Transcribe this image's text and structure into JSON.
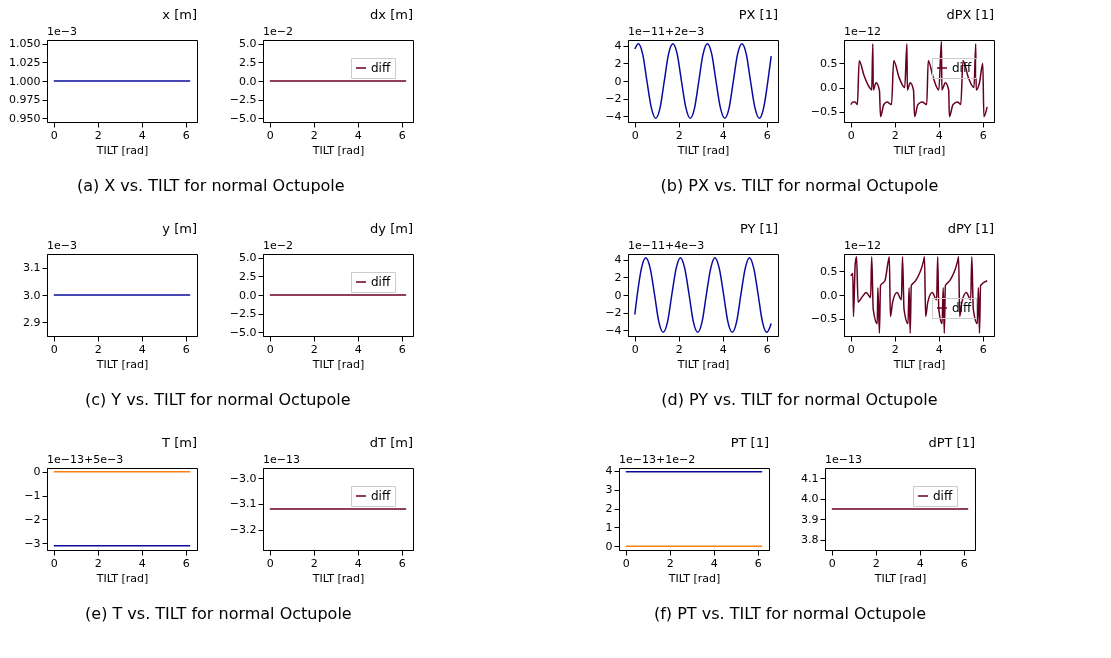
{
  "chart_data": [
    {
      "type": "line",
      "title": "x [m]",
      "xlabel": "TILT [rad]",
      "annotations": [
        "1e−3",
        "(a) X vs. TILT for normal Octupole"
      ],
      "x": [
        0,
        6.2
      ],
      "xlim": [
        -0.31,
        6.51
      ],
      "xticks": [
        0,
        2,
        4,
        6
      ],
      "ylim": [
        0.945,
        1.055
      ],
      "yticks": [
        {
          "value": 0.95,
          "label": "0.950"
        },
        {
          "value": 0.975,
          "label": "0.975"
        },
        {
          "value": 1.0,
          "label": "1.000"
        },
        {
          "value": 1.025,
          "label": "1.025"
        },
        {
          "value": 1.05,
          "label": "1.050"
        }
      ],
      "series": [
        {
          "color": "#0a0aa0",
          "values": [
            1.0,
            1.0
          ]
        }
      ]
    },
    {
      "type": "line",
      "title": "dx [m]",
      "xlabel": "TILT [rad]",
      "annotations": [
        "1e−2"
      ],
      "legend": "top right",
      "x": [
        0,
        6.2
      ],
      "xlim": [
        -0.31,
        6.51
      ],
      "xticks": [
        0,
        2,
        4,
        6
      ],
      "ylim": [
        -5.5,
        5.5
      ],
      "yticks": [
        {
          "value": -5,
          "label": "−5.0"
        },
        {
          "value": -2.5,
          "label": "−2.5"
        },
        {
          "value": 0,
          "label": "0.0"
        },
        {
          "value": 2.5,
          "label": "2.5"
        },
        {
          "value": 5,
          "label": "5.0"
        }
      ],
      "series": [
        {
          "name": "diff",
          "color": "#67001f",
          "values": [
            0,
            0
          ]
        }
      ]
    },
    {
      "type": "line",
      "title": "PX [1]",
      "xlabel": "TILT [rad]",
      "annotations": [
        "1e−11+2e−3",
        "(b) PX vs. TILT for normal Octupole"
      ],
      "x": [
        0,
        0.16,
        0.36,
        0.55,
        0.75,
        0.95,
        1.15,
        1.34,
        1.53,
        1.73,
        1.93,
        2.12,
        2.32,
        2.52,
        2.72,
        2.91,
        3.1,
        3.3,
        3.5,
        3.69,
        3.89,
        4.09,
        4.29,
        4.48,
        4.67,
        4.87,
        5.07,
        5.26,
        5.46,
        5.66,
        5.86,
        6.05,
        6.2
      ],
      "xlim": [
        -0.31,
        6.51
      ],
      "xticks": [
        0,
        2,
        4,
        6
      ],
      "ylim": [
        -4.62,
        4.62
      ],
      "yticks": [
        {
          "value": -4,
          "label": "−4"
        },
        {
          "value": -2,
          "label": "−2"
        },
        0,
        2,
        4
      ],
      "series": [
        {
          "color": "#0a0aa0",
          "values": [
            3.6,
            4.2,
            3.0,
            0,
            -3.0,
            -4.2,
            -3.0,
            0,
            3.0,
            4.2,
            3.0,
            0,
            -3.0,
            -4.2,
            -3.0,
            0,
            3.0,
            4.2,
            3.0,
            0,
            -3.0,
            -4.2,
            -3.0,
            0,
            3.0,
            4.2,
            3.0,
            0,
            -3.0,
            -4.2,
            -3.0,
            0,
            2.8
          ]
        }
      ]
    },
    {
      "type": "line",
      "title": "dPX [1]",
      "xlabel": "TILT [rad]",
      "annotations": [
        "1e−12"
      ],
      "legend": "top right",
      "xlim": [
        -0.31,
        6.51
      ],
      "xticks": [
        0,
        2,
        4,
        6
      ],
      "ylim": [
        -0.71,
        0.98
      ],
      "yticks": [
        {
          "value": -0.5,
          "label": "−0.5"
        },
        {
          "value": 0,
          "label": "0.0"
        },
        0.5
      ],
      "series": [
        {
          "name": "diff",
          "color": "#67001f",
          "x": [
            0,
            0.1,
            0.2,
            0.3,
            0.38,
            0.6,
            0.85,
            0.95,
            1.0,
            1.02,
            1.15,
            1.3,
            1.35,
            1.5,
            1.65,
            1.85,
            1.95,
            2.2,
            2.45,
            2.55,
            2.57,
            2.7,
            2.85,
            2.9,
            3.05,
            3.25,
            3.45,
            3.52,
            3.75,
            4.0,
            4.12,
            4.14,
            4.3,
            4.45,
            4.48,
            4.65,
            4.85,
            5.0,
            5.1,
            5.35,
            5.6,
            5.68,
            5.7,
            5.85,
            6.0,
            6.05,
            6.2
          ],
          "values": [
            -0.35,
            -0.3,
            -0.3,
            -0.35,
            0.55,
            0.25,
            0,
            -0.05,
            0.9,
            -0.05,
            0.1,
            -0.05,
            -0.6,
            -0.35,
            -0.3,
            -0.35,
            0.55,
            0.2,
            0,
            0.9,
            -0.05,
            0.1,
            -0.05,
            -0.6,
            -0.35,
            -0.3,
            -0.35,
            0.55,
            0.2,
            -0.05,
            0.95,
            -0.05,
            0.1,
            -0.05,
            -0.6,
            -0.35,
            -0.3,
            -0.35,
            0.55,
            0.2,
            0,
            0.9,
            -0.05,
            0.1,
            0.5,
            -0.6,
            -0.4
          ]
        }
      ]
    },
    {
      "type": "line",
      "title": "y [m]",
      "xlabel": "TILT [rad]",
      "annotations": [
        "1e−3",
        "(c) Y vs. TILT for normal Octupole"
      ],
      "x": [
        0,
        6.2
      ],
      "xlim": [
        -0.31,
        6.51
      ],
      "xticks": [
        0,
        2,
        4,
        6
      ],
      "ylim": [
        2.85,
        3.15
      ],
      "yticks": [
        2.9,
        {
          "value": 3.0,
          "label": "3.0"
        },
        3.1
      ],
      "series": [
        {
          "color": "#0a0aa0",
          "values": [
            3.0,
            3.0
          ]
        }
      ]
    },
    {
      "type": "line",
      "title": "dy [m]",
      "xlabel": "TILT [rad]",
      "annotations": [
        "1e−2"
      ],
      "legend": "top right",
      "x": [
        0,
        6.2
      ],
      "xlim": [
        -0.31,
        6.51
      ],
      "xticks": [
        0,
        2,
        4,
        6
      ],
      "ylim": [
        -5.5,
        5.5
      ],
      "yticks": [
        {
          "value": -5,
          "label": "−5.0"
        },
        {
          "value": -2.5,
          "label": "−2.5"
        },
        {
          "value": 0,
          "label": "0.0"
        },
        {
          "value": 2.5,
          "label": "2.5"
        },
        {
          "value": 5,
          "label": "5.0"
        }
      ],
      "series": [
        {
          "name": "diff",
          "color": "#67001f",
          "values": [
            0,
            0
          ]
        }
      ]
    },
    {
      "type": "line",
      "title": "PY [1]",
      "xlabel": "TILT [rad]",
      "annotations": [
        "1e−11+4e−3",
        "(d) PY vs. TILT for normal Octupole"
      ],
      "x": [
        0,
        0.11,
        0.3,
        0.5,
        0.7,
        0.9,
        1.09,
        1.29,
        1.49,
        1.68,
        1.88,
        2.07,
        2.27,
        2.47,
        2.66,
        2.86,
        3.06,
        3.25,
        3.45,
        3.64,
        3.84,
        4.04,
        4.23,
        4.43,
        4.63,
        4.82,
        5.02,
        5.21,
        5.41,
        5.61,
        5.8,
        6.0,
        6.2
      ],
      "xlim": [
        -0.31,
        6.51
      ],
      "xticks": [
        0,
        2,
        4,
        6
      ],
      "ylim": [
        -4.62,
        4.62
      ],
      "yticks": [
        {
          "value": -4,
          "label": "−4"
        },
        {
          "value": -2,
          "label": "−2"
        },
        0,
        2,
        4
      ],
      "series": [
        {
          "color": "#0a0aa0",
          "values": [
            -2.2,
            0,
            3.0,
            4.2,
            3.0,
            0,
            -3.0,
            -4.2,
            -3.0,
            0,
            3.0,
            4.2,
            3.0,
            0,
            -3.0,
            -4.2,
            -3.0,
            0,
            3.0,
            4.2,
            3.0,
            0,
            -3.0,
            -4.2,
            -3.0,
            0,
            3.0,
            4.2,
            3.0,
            0,
            -3.0,
            -4.2,
            -3.2
          ]
        }
      ]
    },
    {
      "type": "line",
      "title": "dPY [1]",
      "xlabel": "TILT [rad]",
      "annotations": [
        "1e−12"
      ],
      "legend": "bottom right",
      "xlim": [
        -0.31,
        6.51
      ],
      "xticks": [
        0,
        2,
        4,
        6
      ],
      "ylim": [
        -0.86,
        0.86
      ],
      "yticks": [
        {
          "value": -0.5,
          "label": "−0.5"
        },
        {
          "value": 0,
          "label": "0.0"
        },
        0.5
      ],
      "series": [
        {
          "name": "diff",
          "color": "#67001f",
          "x": [
            0,
            0.09,
            0.12,
            0.2,
            0.26,
            0.33,
            0.5,
            0.7,
            0.9,
            0.95,
            1.02,
            1.2,
            1.23,
            1.3,
            1.35,
            1.55,
            1.7,
            1.75,
            1.8,
            1.9,
            2.1,
            2.3,
            2.35,
            2.42,
            2.6,
            2.65,
            2.7,
            2.75,
            2.95,
            3.3,
            3.35,
            3.4,
            3.5,
            3.7,
            3.9,
            3.95,
            4.0,
            4.15,
            4.2,
            4.25,
            4.3,
            4.5,
            4.85,
            4.9,
            4.95,
            5.05,
            5.25,
            5.45,
            5.5,
            5.57,
            5.75,
            5.8,
            5.85,
            5.9,
            6.2
          ],
          "values": [
            0.4,
            0.45,
            -0.45,
            0.65,
            0.8,
            -0.15,
            -0.05,
            0.05,
            -0.05,
            0.8,
            -0.3,
            -0.6,
            0.15,
            -0.8,
            0.2,
            0.3,
            0.7,
            0.8,
            -0.45,
            -0.15,
            0.05,
            -0.1,
            0.8,
            -0.3,
            -0.6,
            0.15,
            -0.8,
            0.2,
            0.3,
            0.7,
            0.8,
            -0.45,
            -0.15,
            0.05,
            -0.1,
            0.8,
            -0.3,
            -0.6,
            0.15,
            -0.8,
            0.2,
            0.3,
            0.7,
            0.8,
            -0.45,
            -0.15,
            0.05,
            -0.1,
            0.8,
            -0.3,
            -0.6,
            0.15,
            -0.8,
            0.2,
            0.3
          ]
        }
      ]
    },
    {
      "type": "line",
      "title": "T [m]",
      "xlabel": "TILT [rad]",
      "annotations": [
        "1e−13+5e−3",
        "(e) T vs. TILT for normal Octupole"
      ],
      "x": [
        0,
        6.2
      ],
      "xlim": [
        -0.31,
        6.51
      ],
      "xticks": [
        0,
        2,
        4,
        6
      ],
      "ylim": [
        -3.28,
        0.16
      ],
      "yticks": [
        {
          "value": -3,
          "label": "−3"
        },
        {
          "value": -2,
          "label": "−2"
        },
        {
          "value": -1,
          "label": "−1"
        },
        0
      ],
      "series": [
        {
          "color": "#ff7f0e",
          "values": [
            0,
            0
          ]
        },
        {
          "color": "#0a0aa0",
          "values": [
            -3.1,
            -3.1
          ]
        }
      ]
    },
    {
      "type": "line",
      "title": "dT [m]",
      "xlabel": "TILT [rad]",
      "annotations": [
        "1e−13"
      ],
      "legend": "top right",
      "x": [
        0,
        6.2
      ],
      "xlim": [
        -0.31,
        6.51
      ],
      "xticks": [
        0,
        2,
        4,
        6
      ],
      "ylim": [
        -3.28,
        -2.96
      ],
      "yticks": [
        {
          "value": -3.2,
          "label": "−3.2"
        },
        {
          "value": -3.1,
          "label": "−3.1"
        },
        {
          "value": -3.0,
          "label": "−3.0"
        }
      ],
      "series": [
        {
          "name": "diff",
          "color": "#67001f",
          "values": [
            -3.12,
            -3.12
          ]
        }
      ]
    },
    {
      "type": "line",
      "title": "PT [1]",
      "xlabel": "TILT [rad]",
      "annotations": [
        "1e−13+1e−2",
        "(f) PT vs. TILT for normal Octupole"
      ],
      "x": [
        0,
        6.2
      ],
      "xlim": [
        -0.31,
        6.51
      ],
      "xticks": [
        0,
        2,
        4,
        6
      ],
      "ylim": [
        -0.2,
        4.15
      ],
      "yticks": [
        0,
        1,
        2,
        3,
        4
      ],
      "series": [
        {
          "color": "#ff7f0e",
          "values": [
            0,
            0
          ]
        },
        {
          "color": "#0a0aa0",
          "values": [
            3.95,
            3.95
          ]
        }
      ]
    },
    {
      "type": "line",
      "title": "dPT [1]",
      "xlabel": "TILT [rad]",
      "annotations": [
        "1e−13"
      ],
      "legend": "top right",
      "x": [
        0,
        6.2
      ],
      "xlim": [
        -0.31,
        6.51
      ],
      "xticks": [
        0,
        2,
        4,
        6
      ],
      "ylim": [
        3.75,
        4.15
      ],
      "yticks": [
        3.8,
        3.9,
        {
          "value": 4.0,
          "label": "4.0"
        },
        4.1
      ],
      "series": [
        {
          "name": "diff",
          "color": "#67001f",
          "values": [
            3.95,
            3.95
          ]
        }
      ]
    }
  ]
}
